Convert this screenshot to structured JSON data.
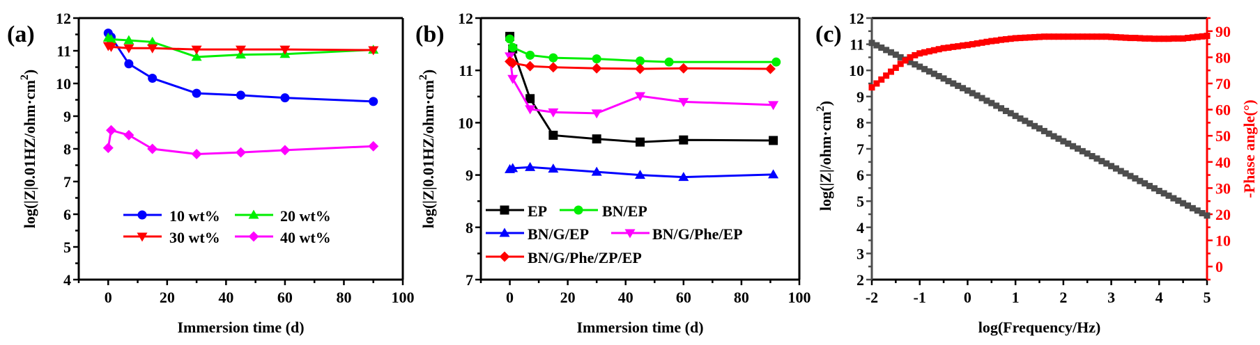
{
  "chart_data": [
    {
      "panel_label": "(a)",
      "type": "line",
      "xlabel": "Immersion time (d)",
      "ylabel": "log(|Z|0.01HZ/ohm·cm",
      "ylabel_sup": "2",
      "ylabel_end": ")",
      "xlim": [
        -10,
        100
      ],
      "ylim": [
        4,
        12
      ],
      "xticks": [
        0,
        20,
        40,
        60,
        80,
        100
      ],
      "yticks": [
        4,
        5,
        6,
        7,
        8,
        9,
        10,
        11,
        12
      ],
      "grid": false,
      "legend_placement": "bottom-right",
      "x": [
        0,
        1,
        7,
        15,
        30,
        45,
        60,
        90
      ],
      "series": [
        {
          "name": "10 wt%",
          "color": "#0000ff",
          "marker": "circle",
          "values": [
            11.54,
            11.42,
            10.6,
            10.16,
            9.7,
            9.64,
            9.56,
            9.45
          ]
        },
        {
          "name": "20 wt%",
          "color": "#00ee00",
          "marker": "triangle-up",
          "values": [
            11.4,
            11.35,
            11.32,
            11.27,
            10.81,
            10.88,
            10.9,
            11.03
          ]
        },
        {
          "name": "30 wt%",
          "color": "#ff0000",
          "marker": "triangle-down",
          "values": [
            11.15,
            11.12,
            11.08,
            11.08,
            11.04,
            11.04,
            11.04,
            11.02
          ]
        },
        {
          "name": "40 wt%",
          "color": "#ff00ff",
          "marker": "diamond",
          "values": [
            8.03,
            8.57,
            8.42,
            8.0,
            7.84,
            7.89,
            7.96,
            8.08
          ]
        }
      ]
    },
    {
      "panel_label": "(b)",
      "type": "line",
      "xlabel": "Immersion time (d)",
      "ylabel": "log(|Z|0.01HZ/ohm·cm",
      "ylabel_sup": "2",
      "ylabel_end": ")",
      "xlim": [
        -10,
        100
      ],
      "ylim": [
        7,
        12
      ],
      "xticks": [
        0,
        20,
        40,
        60,
        80,
        100
      ],
      "yticks": [
        7,
        8,
        9,
        10,
        11,
        12
      ],
      "grid": false,
      "legend_placement": "bottom-left",
      "series": [
        {
          "name": "EP",
          "color": "#000000",
          "marker": "square",
          "x": [
            0,
            1,
            7,
            15,
            30,
            45,
            60,
            91
          ],
          "values": [
            11.65,
            11.41,
            10.46,
            9.76,
            9.69,
            9.63,
            9.67,
            9.66
          ]
        },
        {
          "name": "BN/EP",
          "color": "#00ee00",
          "marker": "circle",
          "x": [
            0,
            1,
            7,
            15,
            30,
            45,
            55,
            92
          ],
          "values": [
            11.6,
            11.44,
            11.29,
            11.24,
            11.22,
            11.18,
            11.16,
            11.16
          ]
        },
        {
          "name": "BN/G/EP",
          "color": "#0000ff",
          "marker": "triangle-up",
          "x": [
            0,
            1,
            7,
            15,
            30,
            45,
            60,
            91
          ],
          "values": [
            9.11,
            9.13,
            9.15,
            9.12,
            9.06,
            9.0,
            8.96,
            9.01
          ]
        },
        {
          "name": "BN/G/Phe/EP",
          "color": "#ff00ff",
          "marker": "triangle-down",
          "x": [
            0,
            1,
            7,
            15,
            30,
            45,
            60,
            91
          ],
          "values": [
            11.27,
            10.84,
            10.26,
            10.2,
            10.18,
            10.51,
            10.4,
            10.34
          ]
        },
        {
          "name": "BN/G/Phe/ZP/EP",
          "color": "#ff0000",
          "marker": "diamond",
          "x": [
            0,
            1,
            7,
            15,
            30,
            45,
            60,
            90
          ],
          "values": [
            11.17,
            11.14,
            11.08,
            11.06,
            11.04,
            11.03,
            11.04,
            11.03
          ]
        }
      ]
    },
    {
      "panel_label": "(c)",
      "type": "scatter",
      "xlabel": "log(Frequency/Hz)",
      "ylabel": "log(|Z|/ohm·cm",
      "ylabel_sup": "2",
      "ylabel_end": ")",
      "y2label": "-Phase angle(°)",
      "xlim": [
        -2,
        5
      ],
      "ylim": [
        2,
        12
      ],
      "y2lim": [
        -5,
        95
      ],
      "xticks": [
        -2,
        -1,
        0,
        1,
        2,
        3,
        4,
        5
      ],
      "yticks": [
        2,
        3,
        4,
        5,
        6,
        7,
        8,
        9,
        10,
        11,
        12
      ],
      "y2ticks": [
        0,
        10,
        20,
        30,
        40,
        50,
        60,
        70,
        80,
        90
      ],
      "y2_color": "#ff0000",
      "grid": false,
      "x": [
        -2.0,
        -1.9,
        -1.8,
        -1.7,
        -1.6,
        -1.5,
        -1.4,
        -1.3,
        -1.2,
        -1.1,
        -1.0,
        -0.9,
        -0.8,
        -0.7,
        -0.6,
        -0.5,
        -0.4,
        -0.3,
        -0.2,
        -0.1,
        0.0,
        0.1,
        0.2,
        0.3,
        0.4,
        0.5,
        0.6,
        0.7,
        0.8,
        0.9,
        1.0,
        1.1,
        1.2,
        1.3,
        1.4,
        1.5,
        1.6,
        1.7,
        1.8,
        1.9,
        2.0,
        2.1,
        2.2,
        2.3,
        2.4,
        2.5,
        2.6,
        2.7,
        2.8,
        2.9,
        3.0,
        3.1,
        3.2,
        3.3,
        3.4,
        3.5,
        3.6,
        3.7,
        3.8,
        3.9,
        4.0,
        4.1,
        4.2,
        4.3,
        4.4,
        4.5,
        4.6,
        4.7,
        4.8,
        4.9,
        5.0
      ],
      "series": [
        {
          "axis": "left",
          "color": "#4d4d4d",
          "marker": "square",
          "values": [
            11.05,
            10.96,
            10.87,
            10.78,
            10.69,
            10.6,
            10.5,
            10.41,
            10.32,
            10.23,
            10.14,
            10.05,
            9.96,
            9.87,
            9.78,
            9.69,
            9.59,
            9.5,
            9.41,
            9.32,
            9.23,
            9.13,
            9.04,
            8.94,
            8.84,
            8.75,
            8.65,
            8.55,
            8.45,
            8.36,
            8.26,
            8.16,
            8.07,
            7.97,
            7.87,
            7.78,
            7.68,
            7.58,
            7.48,
            7.39,
            7.29,
            7.2,
            7.1,
            7.01,
            6.91,
            6.82,
            6.72,
            6.63,
            6.53,
            6.44,
            6.34,
            6.25,
            6.15,
            6.06,
            5.96,
            5.87,
            5.77,
            5.68,
            5.58,
            5.49,
            5.39,
            5.3,
            5.21,
            5.11,
            5.02,
            4.92,
            4.83,
            4.73,
            4.64,
            4.54,
            4.45
          ]
        },
        {
          "axis": "right",
          "color": "#ff0000",
          "marker": "square",
          "values": [
            68.5,
            70,
            71.5,
            73,
            74.5,
            76,
            77.5,
            78.8,
            80,
            80.8,
            81.5,
            81.9,
            82.3,
            82.7,
            83.1,
            83.5,
            83.7,
            84,
            84.2,
            84.5,
            84.7,
            85,
            85.3,
            85.6,
            85.9,
            86.2,
            86.4,
            86.7,
            86.9,
            87.1,
            87.3,
            87.4,
            87.5,
            87.6,
            87.7,
            87.8,
            87.9,
            87.9,
            87.9,
            87.9,
            87.9,
            87.9,
            87.9,
            87.9,
            87.9,
            87.9,
            87.9,
            87.9,
            87.9,
            87.9,
            87.8,
            87.7,
            87.6,
            87.5,
            87.4,
            87.4,
            87.3,
            87.2,
            87.2,
            87.1,
            87.1,
            87.1,
            87.1,
            87.2,
            87.2,
            87.2,
            87.4,
            87.6,
            87.8,
            88,
            88.2
          ]
        }
      ]
    }
  ]
}
